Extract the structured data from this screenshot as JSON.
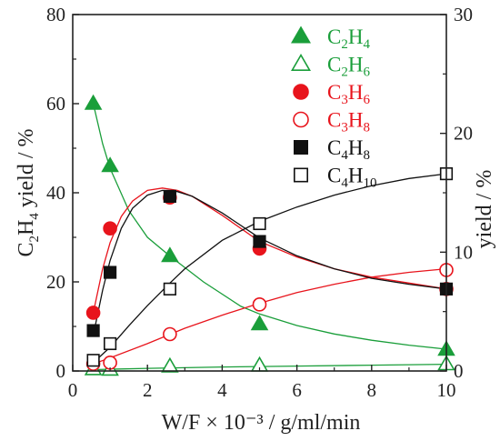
{
  "chart_data": {
    "type": "scatter",
    "xlabel": "W/F × 10⁻³ / g/ml/min",
    "ylabel_left": {
      "base": "C",
      "sub1": "2",
      "mid": "H",
      "sub2": "4",
      "rest": " yield / %"
    },
    "ylabel_right": "yield / %",
    "xlim": [
      0,
      10
    ],
    "ylim_left": [
      0,
      80
    ],
    "ylim_right": [
      0,
      30
    ],
    "xticks": [
      "0",
      "2",
      "4",
      "6",
      "8",
      "10"
    ],
    "yticks_left": [
      "0",
      "20",
      "40",
      "60",
      "80"
    ],
    "yticks_right": [
      "0",
      "10",
      "20",
      "30"
    ],
    "grid": false,
    "legend_position": "top-right",
    "series": [
      {
        "name": "C2H4",
        "display": {
          "a": "C",
          "b": "2",
          "c": "H",
          "d": "4"
        },
        "axis": "left",
        "marker": "triangle",
        "filled": true,
        "color": "#1a9e3a",
        "x": [
          0.55,
          1.0,
          2.6,
          5.0,
          10.0
        ],
        "y": [
          60,
          46,
          25.8,
          10.5,
          4.8
        ]
      },
      {
        "name": "C2H6",
        "display": {
          "a": "C",
          "b": "2",
          "c": "H",
          "d": "6"
        },
        "axis": "left",
        "marker": "triangle",
        "filled": false,
        "color": "#1a9e3a",
        "x": [
          0.55,
          1.0,
          2.6,
          5.0,
          10.0
        ],
        "y": [
          0.4,
          0.3,
          1.0,
          1.2,
          1.5
        ]
      },
      {
        "name": "C3H6",
        "display": {
          "a": "C",
          "b": "3",
          "c": "H",
          "d": "6"
        },
        "axis": "right",
        "marker": "circle",
        "filled": true,
        "color": "#e8141c",
        "x": [
          0.55,
          1.0,
          2.6,
          5.0,
          10.0
        ],
        "y": [
          4.9,
          12.0,
          14.6,
          10.3,
          6.9
        ]
      },
      {
        "name": "C3H8",
        "display": {
          "a": "C",
          "b": "3",
          "c": "H",
          "d": "8"
        },
        "axis": "right",
        "marker": "circle",
        "filled": false,
        "color": "#e8141c",
        "x": [
          0.55,
          1.0,
          2.6,
          5.0,
          10.0
        ],
        "y": [
          0.6,
          0.7,
          3.1,
          5.6,
          8.5
        ]
      },
      {
        "name": "C4H8",
        "display": {
          "a": "C",
          "b": "4",
          "c": "H",
          "d": "8"
        },
        "axis": "right",
        "marker": "square",
        "filled": true,
        "color": "#111111",
        "x": [
          0.55,
          1.0,
          2.6,
          5.0,
          10.0
        ],
        "y": [
          3.4,
          8.3,
          14.7,
          10.9,
          6.9
        ]
      },
      {
        "name": "C4H10",
        "display": {
          "a": "C",
          "b": "4",
          "c": "H",
          "d": "10"
        },
        "axis": "right",
        "marker": "square",
        "filled": false,
        "color": "#111111",
        "x": [
          0.55,
          1.0,
          2.6,
          5.0,
          10.0
        ],
        "y": [
          0.9,
          2.3,
          6.9,
          12.4,
          16.6
        ]
      }
    ],
    "fit_curves": [
      {
        "of": "C2H4",
        "axis": "left",
        "color": "#1a9e3a",
        "x": [
          0.55,
          0.8,
          1.0,
          1.5,
          2.0,
          2.6,
          3.5,
          4.5,
          5.0,
          6.0,
          7.0,
          8.0,
          9.0,
          10.0
        ],
        "y": [
          60,
          51,
          45.5,
          36,
          30,
          25.8,
          20,
          14.5,
          12.8,
          10.2,
          8.3,
          6.9,
          5.8,
          4.9
        ]
      },
      {
        "of": "C2H6",
        "axis": "left",
        "color": "#1a9e3a",
        "x": [
          0.55,
          2.0,
          4.0,
          6.0,
          8.0,
          10.0
        ],
        "y": [
          0.3,
          0.6,
          0.9,
          1.1,
          1.3,
          1.5
        ]
      },
      {
        "of": "C3H6",
        "axis": "right",
        "color": "#e8141c",
        "x": [
          0.55,
          0.8,
          1.0,
          1.3,
          1.6,
          2.0,
          2.4,
          2.8,
          3.2,
          4.0,
          5.0,
          6.0,
          7.0,
          8.0,
          9.0,
          10.0
        ],
        "y": [
          4.9,
          8.6,
          10.8,
          13.0,
          14.3,
          15.2,
          15.4,
          15.2,
          14.7,
          13.1,
          10.9,
          9.6,
          8.6,
          7.9,
          7.4,
          6.9
        ]
      },
      {
        "of": "C3H8",
        "axis": "right",
        "color": "#e8141c",
        "x": [
          0.55,
          1.0,
          2.0,
          3.0,
          4.0,
          5.0,
          6.0,
          7.0,
          8.0,
          9.0,
          10.0
        ],
        "y": [
          0.6,
          1.1,
          2.3,
          3.6,
          4.7,
          5.7,
          6.6,
          7.3,
          7.9,
          8.3,
          8.6
        ]
      },
      {
        "of": "C4H8",
        "axis": "right",
        "color": "#111111",
        "x": [
          0.55,
          0.8,
          1.0,
          1.3,
          1.6,
          2.0,
          2.4,
          2.8,
          3.2,
          4.0,
          5.0,
          6.0,
          7.0,
          8.0,
          9.0,
          10.0
        ],
        "y": [
          3.0,
          6.8,
          9.3,
          12.0,
          13.7,
          14.8,
          15.2,
          15.1,
          14.7,
          13.3,
          11.2,
          9.7,
          8.6,
          7.8,
          7.3,
          6.9
        ]
      },
      {
        "of": "C4H10",
        "axis": "right",
        "color": "#111111",
        "x": [
          0.55,
          1.0,
          1.5,
          2.0,
          2.6,
          3.0,
          4.0,
          5.0,
          6.0,
          7.0,
          8.0,
          9.0,
          10.0
        ],
        "y": [
          0.7,
          2.0,
          3.8,
          5.5,
          7.4,
          8.6,
          11.0,
          12.6,
          13.8,
          14.8,
          15.6,
          16.2,
          16.6
        ]
      }
    ]
  }
}
